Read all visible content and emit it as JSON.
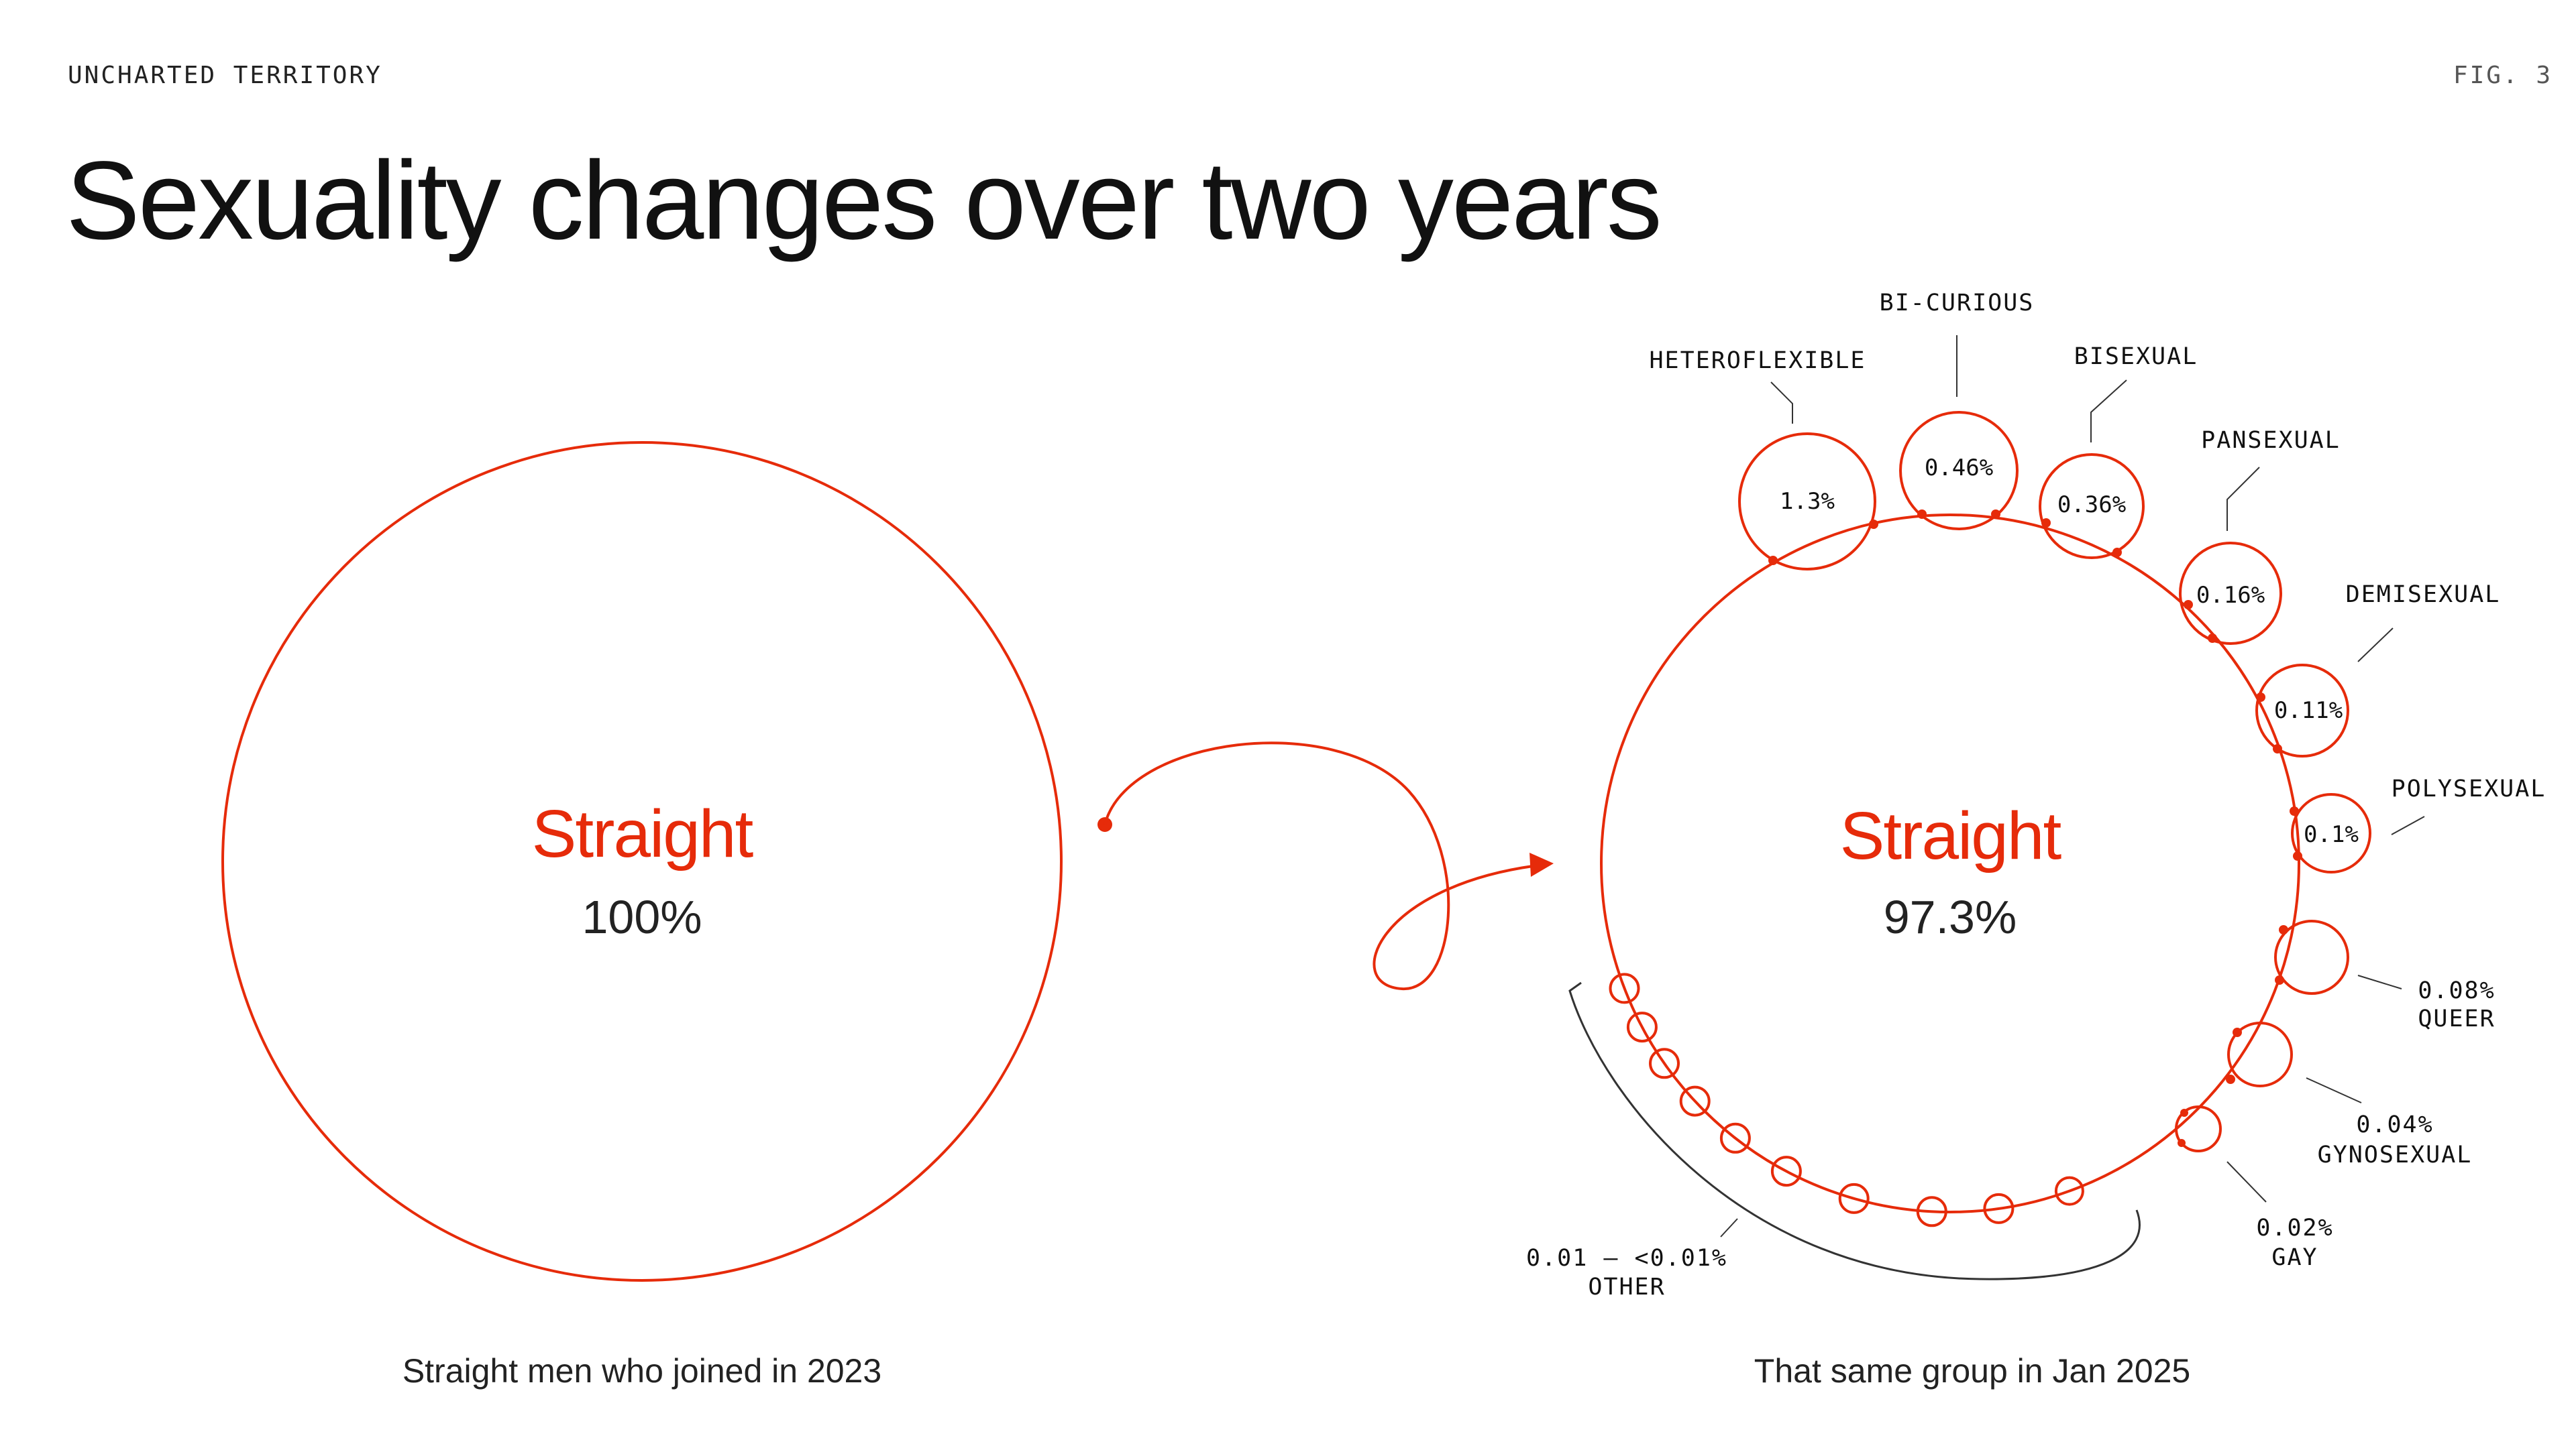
{
  "header": {
    "left": "UNCHARTED TERRITORY",
    "right": "FIG. 3"
  },
  "title": "Sexuality changes over two years",
  "before": {
    "label": "Straight",
    "value": "100%",
    "caption": "Straight men who joined in 2023"
  },
  "after": {
    "label": "Straight",
    "value": "97.3%",
    "caption": "That same group in Jan 2025"
  },
  "categories": [
    {
      "id": "heteroflexible",
      "name": "HETEROFLEXIBLE",
      "value": "1.3%",
      "percent": 1.3
    },
    {
      "id": "bi-curious",
      "name": "BI-CURIOUS",
      "value": "0.46%",
      "percent": 0.46
    },
    {
      "id": "bisexual",
      "name": "BISEXUAL",
      "value": "0.36%",
      "percent": 0.36
    },
    {
      "id": "pansexual",
      "name": "PANSEXUAL",
      "value": "0.16%",
      "percent": 0.16
    },
    {
      "id": "demisexual",
      "name": "DEMISEXUAL",
      "value": "0.11%",
      "percent": 0.11
    },
    {
      "id": "polysexual",
      "name": "POLYSEXUAL",
      "value": "0.1%",
      "percent": 0.1
    },
    {
      "id": "queer",
      "name": "QUEER",
      "value": "0.08%",
      "percent": 0.08
    },
    {
      "id": "gynosexual",
      "name": "GYNOSEXUAL",
      "value": "0.04%",
      "percent": 0.04
    },
    {
      "id": "gay",
      "name": "GAY",
      "value": "0.02%",
      "percent": 0.02
    }
  ],
  "other": {
    "name": "OTHER",
    "value": "0.01 – <0.01%"
  },
  "colors": {
    "accent": "#e62b0a",
    "text": "#111111",
    "bracket": "#333333"
  }
}
